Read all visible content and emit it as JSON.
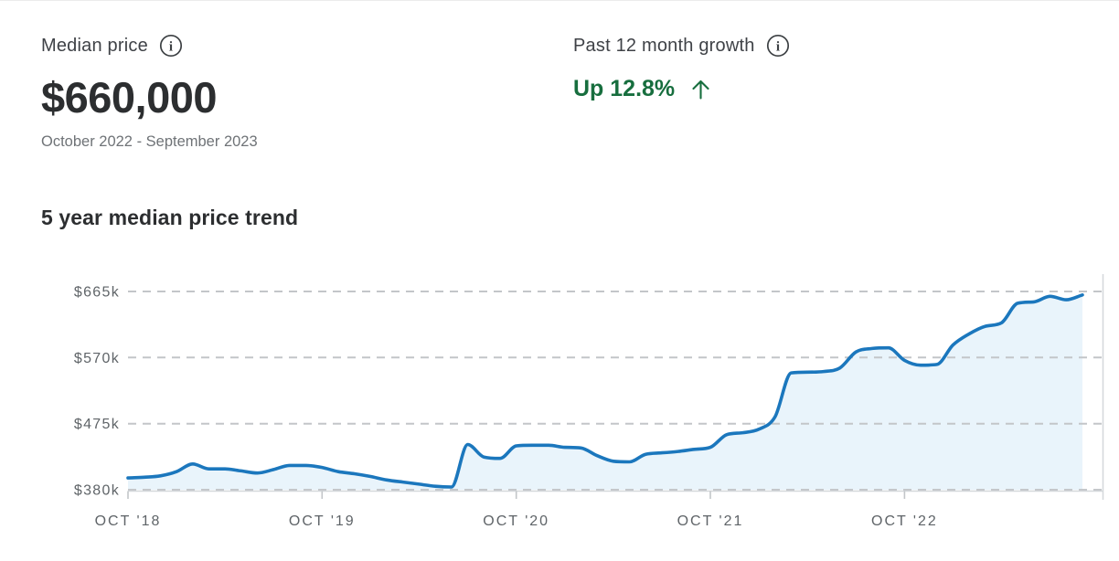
{
  "header": {
    "median_price": {
      "label": "Median price",
      "value": "$660,000",
      "period": "October 2022 - September 2023"
    },
    "growth": {
      "label": "Past 12 month growth",
      "value": "Up 12.8%",
      "direction": "up"
    }
  },
  "chart": {
    "title": "5 year median price trend"
  },
  "colors": {
    "accent_green": "#176e3e",
    "line_blue": "#1b77bd",
    "area_fill": "#e9f4fb",
    "grid_gray": "#c3c6c9",
    "axis_gray": "#d4d8db",
    "tick_text": "#5f6468"
  },
  "chart_data": {
    "type": "area",
    "title": "5 year median price trend",
    "x_unit": "month",
    "x_range": "Oct 2018 - Sep 2023",
    "ylim": [
      380,
      665
    ],
    "grid": "dashed-horizontal",
    "legend": "none",
    "y_tick_values": [
      380,
      475,
      570,
      665
    ],
    "y_tick_labels": [
      "$380k",
      "$475k",
      "$570k",
      "$665k"
    ],
    "x_tick_month_indices": [
      0,
      12,
      24,
      36,
      48
    ],
    "x_tick_labels": [
      "OCT '18",
      "OCT '19",
      "OCT '20",
      "OCT '21",
      "OCT '22"
    ],
    "months": [
      "Oct 2018",
      "Nov 2018",
      "Dec 2018",
      "Jan 2019",
      "Feb 2019",
      "Mar 2019",
      "Apr 2019",
      "May 2019",
      "Jun 2019",
      "Jul 2019",
      "Aug 2019",
      "Sep 2019",
      "Oct 2019",
      "Nov 2019",
      "Dec 2019",
      "Jan 2020",
      "Feb 2020",
      "Mar 2020",
      "Apr 2020",
      "May 2020",
      "Jun 2020",
      "Jul 2020",
      "Aug 2020",
      "Sep 2020",
      "Oct 2020",
      "Nov 2020",
      "Dec 2020",
      "Jan 2021",
      "Feb 2021",
      "Mar 2021",
      "Apr 2021",
      "May 2021",
      "Jun 2021",
      "Jul 2021",
      "Aug 2021",
      "Sep 2021",
      "Oct 2021",
      "Nov 2021",
      "Dec 2021",
      "Jan 2022",
      "Feb 2022",
      "Mar 2022",
      "Apr 2022",
      "May 2022",
      "Jun 2022",
      "Jul 2022",
      "Aug 2022",
      "Sep 2022",
      "Oct 2022",
      "Nov 2022",
      "Dec 2022",
      "Jan 2023",
      "Feb 2023",
      "Mar 2023",
      "Apr 2023",
      "May 2023",
      "Jun 2023",
      "Jul 2023",
      "Aug 2023",
      "Sep 2023"
    ],
    "values_thousands": [
      397,
      398,
      400,
      406,
      417,
      410,
      410,
      407,
      404,
      409,
      415,
      415,
      412,
      406,
      403,
      399,
      394,
      391,
      388,
      385,
      384,
      445,
      427,
      425,
      443,
      444,
      444,
      441,
      440,
      429,
      421,
      420,
      431,
      433,
      435,
      438,
      441,
      459,
      462,
      467,
      485,
      548,
      549,
      550,
      555,
      578,
      583,
      584,
      566,
      559,
      560,
      588,
      604,
      615,
      620,
      648,
      650,
      658,
      653,
      660
    ]
  }
}
